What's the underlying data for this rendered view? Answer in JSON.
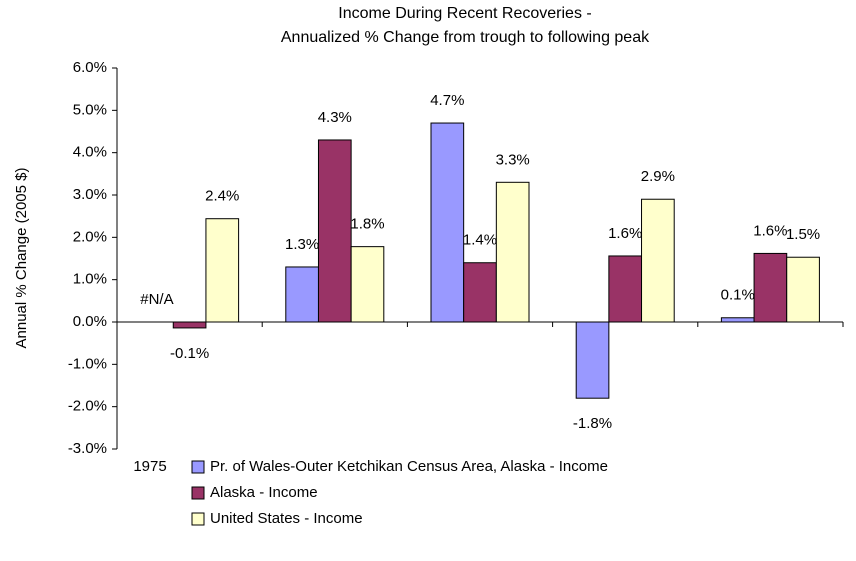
{
  "chart_data": {
    "type": "bar",
    "title_lines": [
      "Income During Recent Recoveries -",
      "Annualized % Change from trough to following peak"
    ],
    "y_label": "Annual % Change (2005 $)",
    "categories": [
      "1975",
      null,
      null,
      null,
      null
    ],
    "series": [
      {
        "name": "Pr. of Wales-Outer Ketchikan Census Area, Alaska - Income",
        "color": "#9999ff",
        "values": [
          null,
          1.3,
          4.7,
          -1.8,
          0.1
        ],
        "value_labels": [
          "#N/A",
          "1.3%",
          "4.7%",
          "-1.8%",
          "0.1%"
        ]
      },
      {
        "name": "Alaska - Income",
        "color": "#993366",
        "values": [
          -0.14,
          4.3,
          1.4,
          1.56,
          1.62
        ],
        "value_labels": [
          "-0.1%",
          "4.3%",
          "1.4%",
          "1.6%",
          "1.6%"
        ]
      },
      {
        "name": "United States - Income",
        "color": "#ffffcc",
        "values": [
          2.44,
          1.78,
          3.3,
          2.9,
          1.53
        ],
        "value_labels": [
          "2.4%",
          "1.8%",
          "3.3%",
          "2.9%",
          "1.5%"
        ]
      }
    ],
    "ylim": [
      -3,
      6
    ],
    "yticks": [
      {
        "value": -3,
        "label": "-3.0%"
      },
      {
        "value": -2,
        "label": "-2.0%"
      },
      {
        "value": -1,
        "label": "-1.0%"
      },
      {
        "value": 0,
        "label": "0.0%"
      },
      {
        "value": 1,
        "label": "1.0%"
      },
      {
        "value": 2,
        "label": "2.0%"
      },
      {
        "value": 3,
        "label": "3.0%"
      },
      {
        "value": 4,
        "label": "4.0%"
      },
      {
        "value": 5,
        "label": "5.0%"
      },
      {
        "value": 6,
        "label": "6.0%"
      }
    ],
    "grid": false
  }
}
